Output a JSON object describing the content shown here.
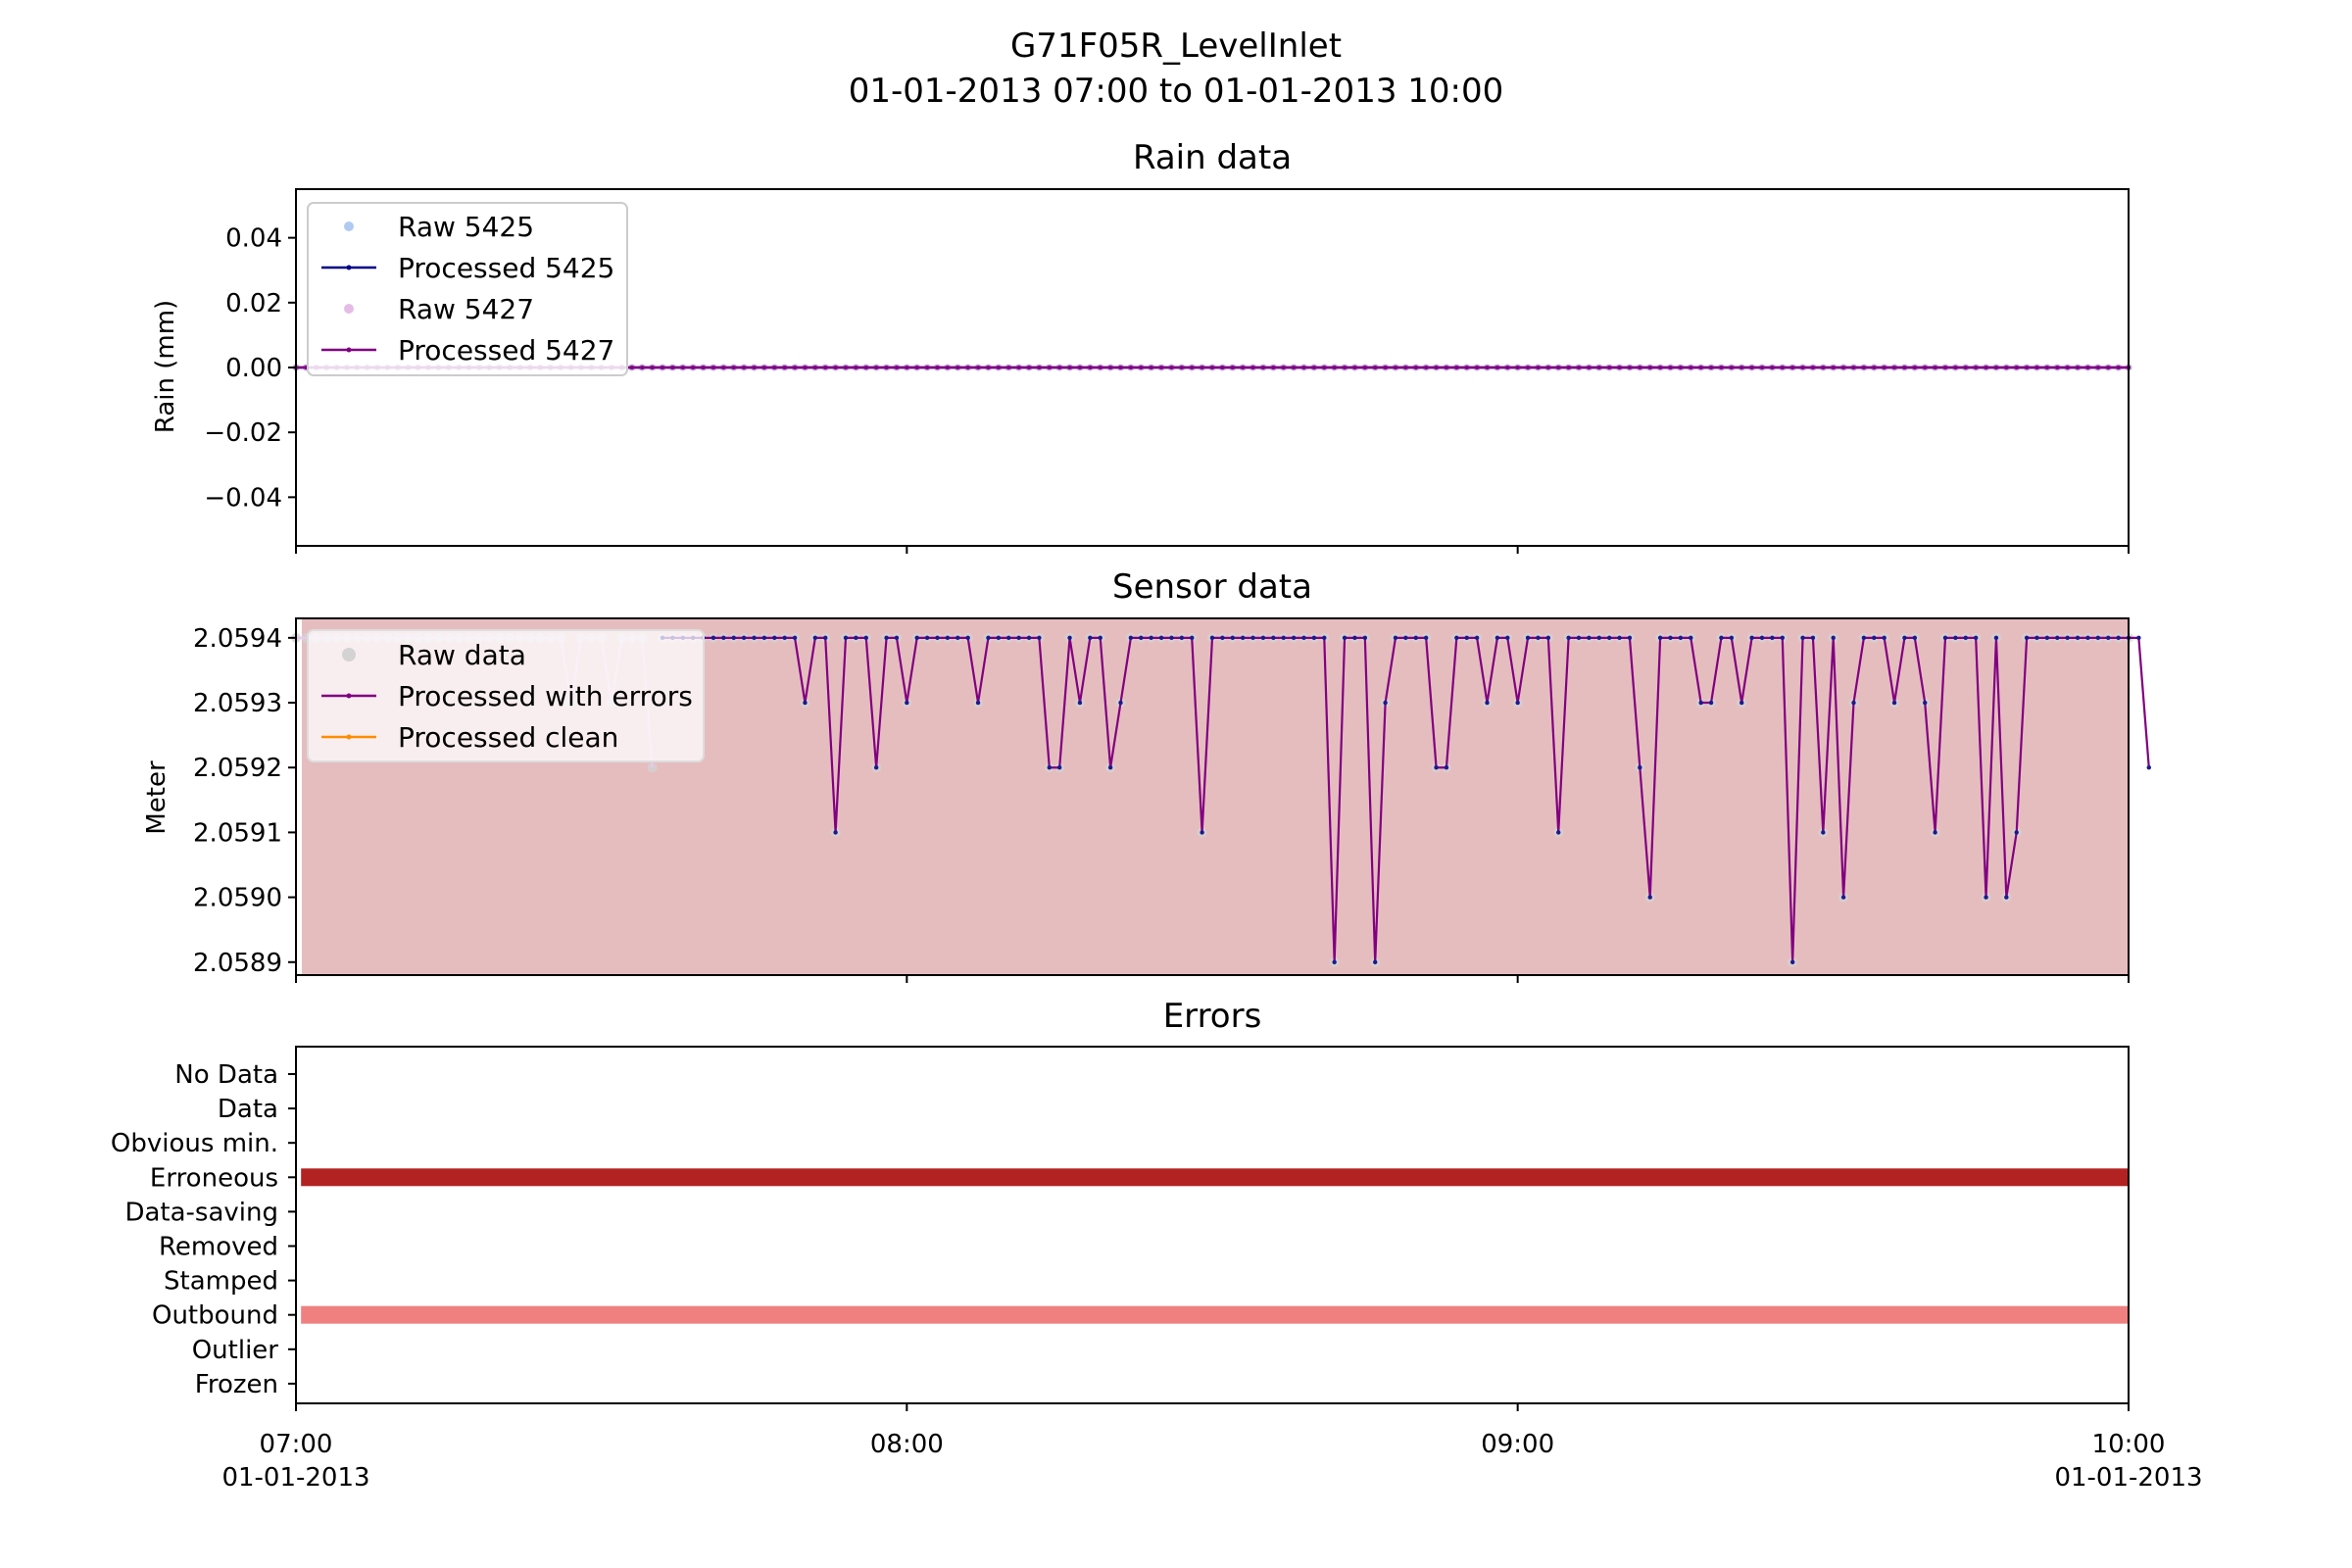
{
  "figure": {
    "title_line1": "G71F05R_LevelInlet",
    "title_line2": "01-01-2013 07:00 to 01-01-2013 10:00"
  },
  "chart_data": [
    {
      "panel": "rain",
      "type": "line",
      "title": "Rain data",
      "ylabel": "Rain (mm)",
      "xlim_minutes": [
        0,
        180
      ],
      "ylim": [
        -0.055,
        0.055
      ],
      "yticks": [
        0.04,
        0.02,
        0.0,
        -0.02,
        -0.04
      ],
      "ytick_labels": [
        "0.04",
        "0.02",
        "0.00",
        "−0.02",
        "−0.04"
      ],
      "legend": {
        "position": "upper-left",
        "entries": [
          "Raw 5425",
          "Processed 5425",
          "Raw 5427",
          "Processed 5427"
        ]
      },
      "series": [
        {
          "name": "Raw 5425",
          "color": "#7fa7e8",
          "style": "points",
          "constant": 0.0,
          "interval_minutes": 1
        },
        {
          "name": "Processed 5425",
          "color": "#00008b",
          "style": "line+points",
          "constant": 0.0,
          "interval_minutes": 1
        },
        {
          "name": "Raw 5427",
          "color": "#d58fd5",
          "style": "points",
          "constant": 0.0,
          "interval_minutes": 1
        },
        {
          "name": "Processed 5427",
          "color": "#800080",
          "style": "line+points",
          "constant": 0.0,
          "interval_minutes": 1
        }
      ]
    },
    {
      "panel": "sensor",
      "type": "line",
      "title": "Sensor data",
      "ylabel": "Meter",
      "xlim_minutes": [
        0,
        180
      ],
      "ylim": [
        2.05888,
        2.05943
      ],
      "yticks": [
        2.0594,
        2.0593,
        2.0592,
        2.0591,
        2.059,
        2.0589
      ],
      "ytick_labels": [
        "2.0594",
        "2.0593",
        "2.0592",
        "2.0591",
        "2.0590",
        "2.0589"
      ],
      "background_color": "#e6bdbf",
      "legend": {
        "position": "upper-left",
        "entries": [
          "Raw data",
          "Processed with errors",
          "Processed clean"
        ]
      },
      "series": [
        {
          "name": "Raw data",
          "color": "#c8c8c8",
          "style": "points"
        },
        {
          "name": "Processed with errors",
          "color": "#800080",
          "style": "line+points"
        },
        {
          "name": "Processed clean",
          "color": "#ff8c00",
          "style": "line+points"
        }
      ],
      "x_minutes": [
        0,
        1,
        2,
        3,
        4,
        5,
        6,
        7,
        8,
        9,
        10,
        11,
        12,
        13,
        14,
        15,
        16,
        17,
        18,
        19,
        20,
        21,
        22,
        23,
        24,
        25,
        26,
        27,
        28,
        29,
        30,
        31,
        32,
        33,
        34,
        35,
        36,
        37,
        38,
        39,
        40,
        41,
        42,
        43,
        44,
        45,
        46,
        47,
        48,
        49,
        50,
        51,
        52,
        53,
        54,
        55,
        56,
        57,
        58,
        59,
        60,
        61,
        62,
        63,
        64,
        65,
        66,
        67,
        68,
        69,
        70,
        71,
        72,
        73,
        74,
        75,
        76,
        77,
        78,
        79,
        80,
        81,
        82,
        83,
        84,
        85,
        86,
        87,
        88,
        89,
        90,
        91,
        92,
        93,
        94,
        95,
        96,
        97,
        98,
        99,
        100,
        101,
        102,
        103,
        104,
        105,
        106,
        107,
        108,
        109,
        110,
        111,
        112,
        113,
        114,
        115,
        116,
        117,
        118,
        119,
        120,
        121,
        122,
        123,
        124,
        125,
        126,
        127,
        128,
        129,
        130,
        131,
        132,
        133,
        134,
        135,
        136,
        137,
        138,
        139,
        140,
        141,
        142,
        143,
        144,
        145,
        146,
        147,
        148,
        149,
        150,
        151,
        152,
        153,
        154,
        155,
        156,
        157,
        158,
        159,
        160,
        161,
        162,
        163,
        164,
        165,
        166,
        167,
        168,
        169,
        170,
        171,
        172,
        173,
        174,
        175,
        176,
        177,
        178,
        179,
        180
      ],
      "raw_values": [
        2.0594,
        2.0594,
        2.0594,
        2.0594,
        2.0594,
        2.0594,
        2.0594,
        2.0594,
        2.0594,
        2.0594,
        2.0594,
        2.0594,
        2.0594,
        2.0594,
        2.0594,
        2.0594,
        2.0594,
        2.0594,
        2.0594,
        2.0594,
        2.0594,
        2.0594,
        2.0594,
        2.0594,
        2.0594,
        2.0594,
        2.0594,
        2.0593,
        2.0594,
        2.0594,
        2.0594,
        2.0593,
        2.0594,
        2.0594,
        2.0594,
        2.0592,
        2.0594,
        2.0594,
        2.0594,
        2.0594,
        2.0594,
        2.0594,
        2.0594,
        2.0594,
        2.0594,
        2.0594,
        2.0594,
        2.0594,
        2.0594,
        2.0594,
        2.0593,
        2.0594,
        2.0594,
        2.0591,
        2.0594,
        2.0594,
        2.0594,
        2.0592,
        2.0594,
        2.0594,
        2.0593,
        2.0594,
        2.0594,
        2.0594,
        2.0594,
        2.0594,
        2.0594,
        2.0593,
        2.0594,
        2.0594,
        2.0594,
        2.0594,
        2.0594,
        2.0594,
        2.0592,
        2.0592,
        2.0594,
        2.0593,
        2.0594,
        2.0594,
        2.0592,
        2.0593,
        2.0594,
        2.0594,
        2.0594,
        2.0594,
        2.0594,
        2.0594,
        2.0594,
        2.0591,
        2.0594,
        2.0594,
        2.0594,
        2.0594,
        2.0594,
        2.0594,
        2.0594,
        2.0594,
        2.0594,
        2.0594,
        2.0594,
        2.0594,
        2.0589,
        2.0594,
        2.0594,
        2.0594,
        2.0589,
        2.0593,
        2.0594,
        2.0594,
        2.0594,
        2.0594,
        2.0592,
        2.0592,
        2.0594,
        2.0594,
        2.0594,
        2.0593,
        2.0594,
        2.0594,
        2.0593,
        2.0594,
        2.0594,
        2.0594,
        2.0591,
        2.0594,
        2.0594,
        2.0594,
        2.0594,
        2.0594,
        2.0594,
        2.0594,
        2.0592,
        2.059,
        2.0594,
        2.0594,
        2.0594,
        2.0594,
        2.0593,
        2.0593,
        2.0594,
        2.0594,
        2.0593,
        2.0594,
        2.0594,
        2.0594,
        2.0594,
        2.0589,
        2.0594,
        2.0594,
        2.0591,
        2.0594,
        2.059,
        2.0593,
        2.0594,
        2.0594,
        2.0594,
        2.0593,
        2.0594,
        2.0594,
        2.0593,
        2.0591,
        2.0594,
        2.0594,
        2.0594,
        2.0594,
        2.059,
        2.0594,
        2.059,
        2.0591,
        2.0594,
        2.0594,
        2.0594,
        2.0594,
        2.0594,
        2.0594,
        2.0594,
        2.0594,
        2.0594,
        2.0594,
        2.0594,
        2.0594,
        2.0592
      ],
      "processed_start_minute": 36,
      "processed_values": [
        2.0594,
        2.0594,
        2.0594,
        2.0594,
        2.0594,
        2.0594,
        2.0594,
        2.0594,
        2.0594,
        2.0594,
        2.0594,
        2.0594,
        2.0594,
        2.0594,
        2.0593,
        2.0594,
        2.0594,
        2.0591,
        2.0594,
        2.0594,
        2.0594,
        2.0592,
        2.0594,
        2.0594,
        2.0593,
        2.0594,
        2.0594,
        2.0594,
        2.0594,
        2.0594,
        2.0594,
        2.0593,
        2.0594,
        2.0594,
        2.0594,
        2.0594,
        2.0594,
        2.0594,
        2.0592,
        2.0592,
        2.0594,
        2.0593,
        2.0594,
        2.0594,
        2.0592,
        2.0593,
        2.0594,
        2.0594,
        2.0594,
        2.0594,
        2.0594,
        2.0594,
        2.0594,
        2.0591,
        2.0594,
        2.0594,
        2.0594,
        2.0594,
        2.0594,
        2.0594,
        2.0594,
        2.0594,
        2.0594,
        2.0594,
        2.0594,
        2.0594,
        2.0589,
        2.0594,
        2.0594,
        2.0594,
        2.0589,
        2.0593,
        2.0594,
        2.0594,
        2.0594,
        2.0594,
        2.0592,
        2.0592,
        2.0594,
        2.0594,
        2.0594,
        2.0593,
        2.0594,
        2.0594,
        2.0593,
        2.0594,
        2.0594,
        2.0594,
        2.0591,
        2.0594,
        2.0594,
        2.0594,
        2.0594,
        2.0594,
        2.0594,
        2.0594,
        2.0592,
        2.059,
        2.0594,
        2.0594,
        2.0594,
        2.0594,
        2.0593,
        2.0593,
        2.0594,
        2.0594,
        2.0593,
        2.0594,
        2.0594,
        2.0594,
        2.0594,
        2.0589,
        2.0594,
        2.0594,
        2.0591,
        2.0594,
        2.059,
        2.0593,
        2.0594,
        2.0594,
        2.0594,
        2.0593,
        2.0594,
        2.0594,
        2.0593,
        2.0591,
        2.0594,
        2.0594,
        2.0594,
        2.0594,
        2.059,
        2.0594,
        2.059,
        2.0591,
        2.0594,
        2.0594,
        2.0594,
        2.0594,
        2.0594,
        2.0594,
        2.0594,
        2.0594,
        2.0594,
        2.0594,
        2.0594,
        2.0594,
        2.0592
      ]
    },
    {
      "panel": "errors",
      "type": "bar",
      "title": "Errors",
      "categories": [
        "No Data",
        "Data",
        "Obvious min.",
        "Erroneous",
        "Data-saving",
        "Removed",
        "Stamped",
        "Outbound",
        "Outlier",
        "Frozen"
      ],
      "xlim_minutes": [
        0,
        180
      ],
      "bands": [
        {
          "category": "Erroneous",
          "start_minute": 0.5,
          "end_minute": 180,
          "color": "#b22222"
        },
        {
          "category": "Outbound",
          "start_minute": 0.5,
          "end_minute": 180,
          "color": "#f08080"
        }
      ],
      "xticks_minutes": [
        0,
        60,
        120,
        180
      ],
      "xtick_labels": [
        [
          "07:00",
          "01-01-2013"
        ],
        [
          "08:00"
        ],
        [
          "09:00"
        ],
        [
          "10:00",
          "01-01-2013"
        ]
      ]
    }
  ]
}
